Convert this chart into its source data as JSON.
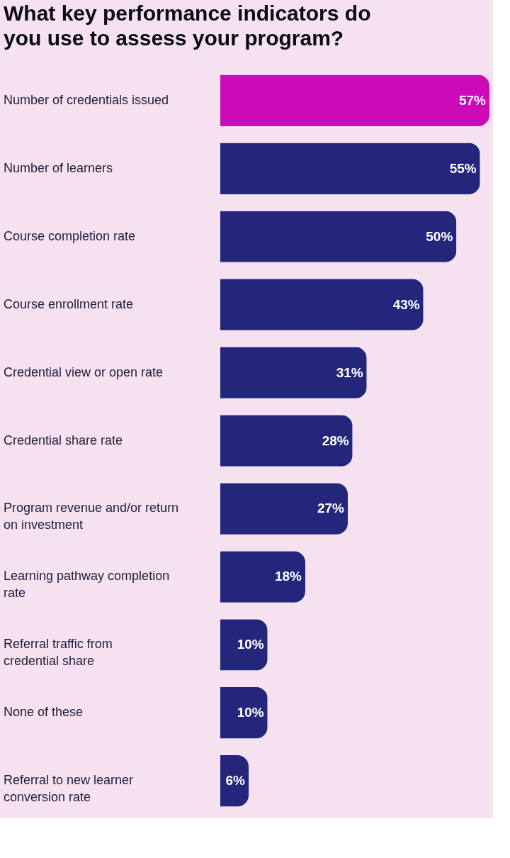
{
  "chart_data": {
    "type": "bar",
    "orientation": "horizontal",
    "title": "What key performance indicators do you use to assess your program?",
    "categories": [
      "Number of credentials issued",
      "Number of learners",
      "Course completion rate",
      "Course enrollment rate",
      "Credential view or open rate",
      "Credential share rate",
      "Program revenue and/or return on investment",
      "Learning pathway completion rate",
      "Referral traffic from credential share",
      "None of these",
      "Referral to new learner conversion rate"
    ],
    "values": [
      57,
      55,
      50,
      43,
      31,
      28,
      27,
      18,
      10,
      10,
      6
    ],
    "value_labels": [
      "57%",
      "55%",
      "50%",
      "43%",
      "31%",
      "28%",
      "27%",
      "18%",
      "10%",
      "10%",
      "6%"
    ],
    "colors": [
      "#cc0ab8",
      "#23267a",
      "#23267a",
      "#23267a",
      "#23267a",
      "#23267a",
      "#23267a",
      "#23267a",
      "#23267a",
      "#23267a",
      "#23267a"
    ],
    "tick_labels": "y"
  }
}
